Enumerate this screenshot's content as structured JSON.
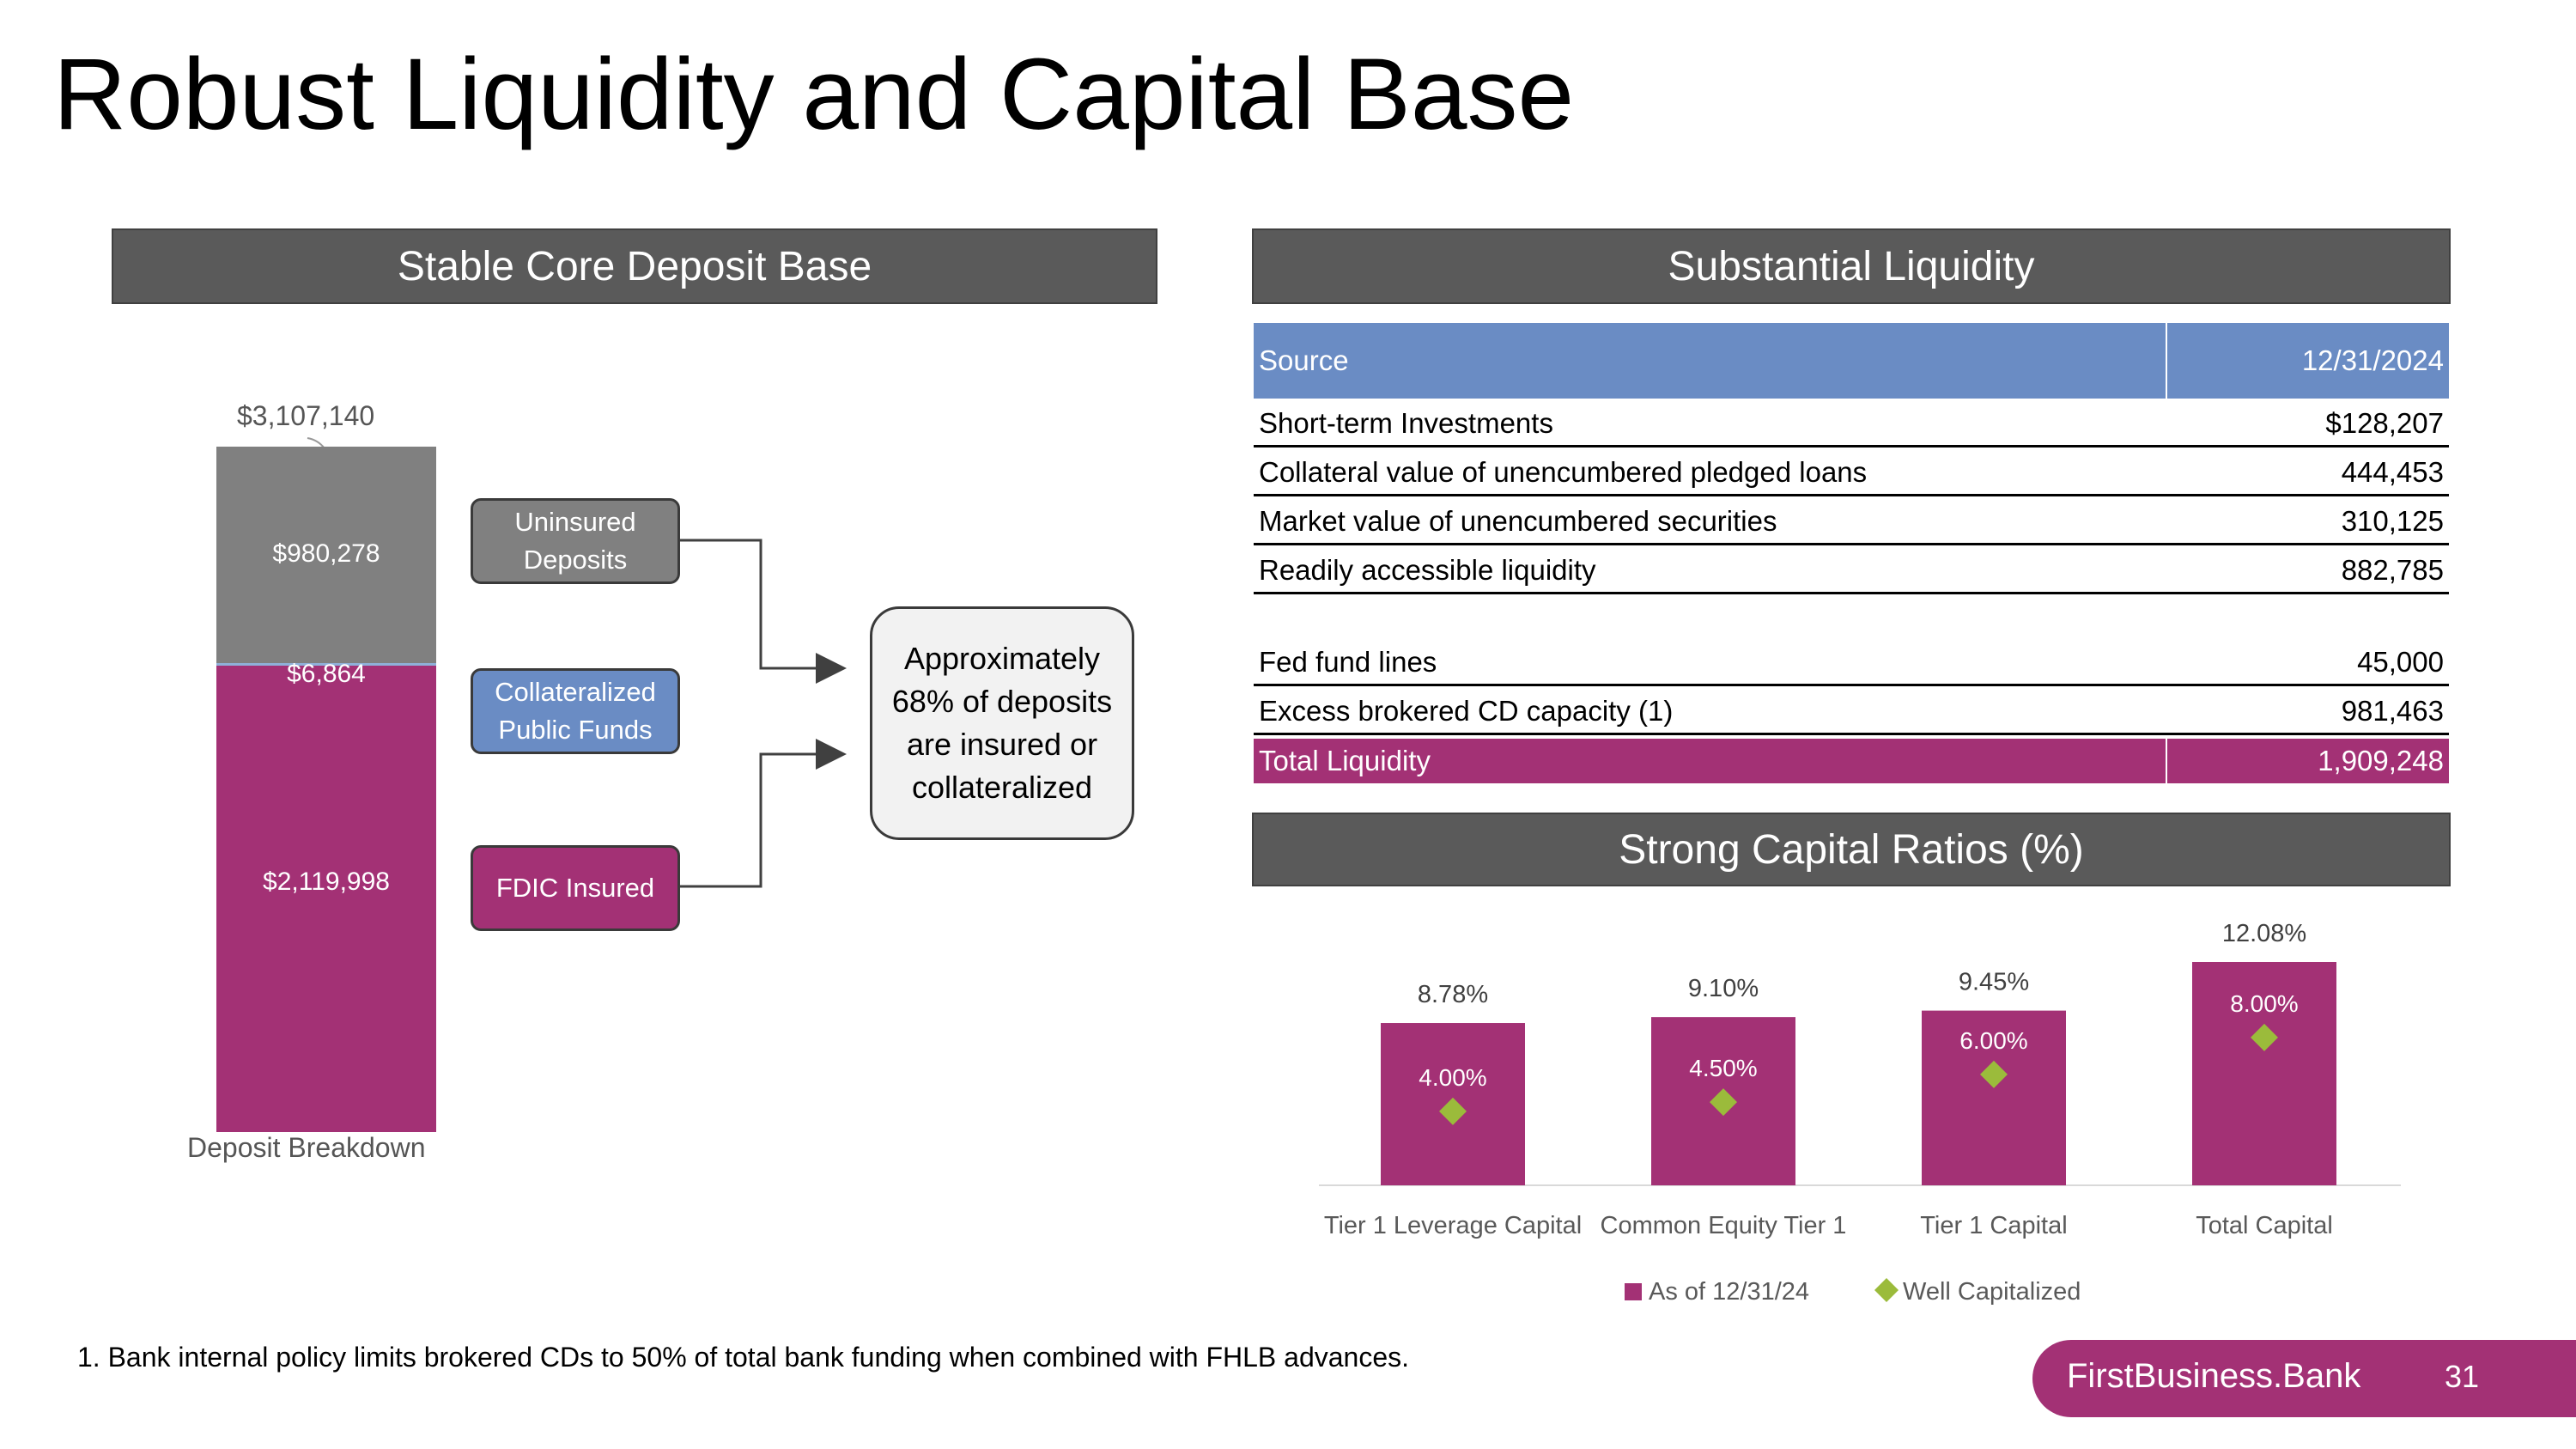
{
  "page": {
    "title": "Robust Liquidity and Capital Base",
    "footnote": "1. Bank internal policy limits brokered CDs to 50% of total bank funding when combined with FHLB advances.",
    "brand": "FirstBusiness.Bank",
    "page_number": "31"
  },
  "colors": {
    "header_bg": "#5a5a5a",
    "magenta": "#a33175",
    "gray": "#808080",
    "blue": "#6a8cc4",
    "green": "#9bbb3b"
  },
  "deposit": {
    "header": "Stable Core Deposit Base",
    "total_label": "$3,107,140",
    "axis_label": "Deposit Breakdown",
    "segments": [
      {
        "name": "Uninsured Deposits",
        "value": 980278,
        "label": "$980,278"
      },
      {
        "name": "Collateralized Public Funds",
        "value": 6864,
        "label": "$6,864"
      },
      {
        "name": "FDIC Insured",
        "value": 2119998,
        "label": "$2,119,998"
      }
    ],
    "boxes": {
      "uninsured": "Uninsured Deposits",
      "collateralized": "Collateralized Public Funds",
      "fdic": "FDIC Insured"
    },
    "callout": "Approximately 68% of deposits are insured or collateralized"
  },
  "liquidity": {
    "header": "Substantial Liquidity",
    "columns": [
      "Source",
      "12/31/2024"
    ],
    "rows": [
      {
        "source": "Short-term Investments",
        "value": "$128,207"
      },
      {
        "source": "Collateral value of unencumbered pledged loans",
        "value": "444,453"
      },
      {
        "source": "Market value of unencumbered securities",
        "value": "310,125"
      },
      {
        "source": "Readily accessible liquidity",
        "value": "882,785"
      },
      {
        "source": "Fed fund lines",
        "value": "45,000"
      },
      {
        "source": "Excess brokered CD capacity (1)",
        "value": "981,463"
      }
    ],
    "total": {
      "source": "Total Liquidity",
      "value": "1,909,248"
    }
  },
  "capital": {
    "header": "Strong Capital Ratios (%)"
  },
  "chart_data": [
    {
      "type": "bar",
      "categories": [
        "Deposit Breakdown"
      ],
      "stacked": true,
      "series": [
        {
          "name": "FDIC Insured",
          "values": [
            2119998
          ]
        },
        {
          "name": "Collateralized Public Funds",
          "values": [
            6864
          ]
        },
        {
          "name": "Uninsured Deposits",
          "values": [
            980278
          ]
        }
      ],
      "total": 3107140,
      "xlabel": "Deposit Breakdown"
    },
    {
      "type": "bar",
      "categories": [
        "Tier 1 Leverage Capital",
        "Common Equity Tier 1",
        "Tier 1 Capital",
        "Total Capital"
      ],
      "series": [
        {
          "name": "As of 12/31/24",
          "values": [
            8.78,
            9.1,
            9.45,
            12.08
          ],
          "labels": [
            "8.78%",
            "9.10%",
            "9.45%",
            "12.08%"
          ]
        },
        {
          "name": "Well Capitalized",
          "values": [
            4.0,
            4.5,
            6.0,
            8.0
          ],
          "labels": [
            "4.00%",
            "4.50%",
            "6.00%",
            "8.00%"
          ],
          "marker": "diamond"
        }
      ],
      "ylim": [
        0,
        12.08
      ],
      "legend_position": "bottom"
    }
  ]
}
